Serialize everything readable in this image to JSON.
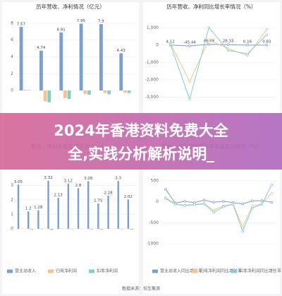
{
  "chart_data": [
    {
      "type": "bar",
      "title": "历年营收、净利情况（亿元）",
      "categories": [
        null,
        null,
        null,
        null,
        null,
        null
      ],
      "series": [
        {
          "color": "#7b9fd4",
          "values": [
            7.57,
            4.74,
            6.91,
            7.95,
            7.9,
            4.43
          ],
          "data_labels": true
        },
        {
          "color": "#f5c48a",
          "values": [
            0.1,
            -1.3,
            -0.9,
            -0.4,
            -0.3,
            -0.25
          ]
        },
        {
          "color": "#7fd0cc",
          "values": [
            0.05,
            -1.4,
            -1.0,
            -0.5,
            -0.45,
            -0.3
          ]
        }
      ],
      "ylim": [
        -1,
        8.5
      ],
      "yticks": [
        0,
        2,
        4,
        6,
        8
      ],
      "grid": true
    },
    {
      "type": "line",
      "title": "历年营收、净利同比增长率情况（%）",
      "categories": [
        null,
        null,
        null,
        null,
        null,
        null
      ],
      "series": [
        {
          "color": "#7b9fd4",
          "values": [
            4.12,
            -45.44,
            46.48,
            28.33,
            0.16,
            0.83
          ],
          "data_labels": true
        },
        {
          "color": "#f5c48a",
          "values": [
            100,
            -2100,
            300,
            -200,
            -600,
            900
          ]
        },
        {
          "color": "#7fd0cc",
          "values": [
            50,
            -3100,
            1000,
            -300,
            -500,
            600
          ]
        }
      ],
      "ylim": [
        -3500,
        1500
      ],
      "yticks": [
        {
          "value": 1000,
          "label": "1,000"
        },
        0,
        {
          "value": -1000,
          "label": "-1,000"
        },
        {
          "value": -2000,
          "label": "-2,000"
        },
        {
          "value": -3000,
          "label": "-3,000"
        }
      ],
      "grid": true
    },
    {
      "type": "bar",
      "title": "营收、净利季度变动情况（亿元）",
      "categories": [
        null,
        null,
        null,
        null,
        null,
        null,
        null,
        null,
        null,
        null,
        null,
        null
      ],
      "series": [
        {
          "name": "营业总收入",
          "color": "#7b9fd4",
          "values": [
            3.05,
            1.2,
            1.28,
            3.32,
            2.13,
            3.12,
            2.8,
            3.28,
            1.75,
            2.28,
            3.3,
            2.02
          ],
          "data_labels": true
        },
        {
          "name": "归母净利润",
          "color": "#f5c48a",
          "values": [
            0.02,
            -0.05,
            -0.03,
            -0.08,
            0.03,
            -0.02,
            0.02,
            -0.04,
            -0.05,
            0.02,
            -0.03,
            -0.06
          ]
        },
        {
          "name": "扣非净利润",
          "color": "#7fd0cc",
          "values": [
            0.01,
            -0.06,
            -0.04,
            -0.09,
            0.02,
            -0.03,
            0.01,
            -0.05,
            -0.06,
            0.01,
            -0.04,
            -0.07
          ]
        }
      ],
      "ylim": [
        -0.3,
        3.6
      ],
      "yticks": [
        0,
        1,
        2,
        3
      ],
      "grid": true
    },
    {
      "type": "line",
      "title": "营收、净利同比增长率季度变动情况（%）",
      "categories": [
        null,
        null,
        null,
        null,
        null,
        null,
        null,
        null,
        null,
        null,
        null,
        null
      ],
      "series": [
        {
          "name": "营业总收入同比增长率",
          "color": "#7b9fd4",
          "values": [
            300,
            -30,
            10,
            -20,
            40,
            -10,
            10,
            -20,
            -50,
            20,
            30,
            -15
          ]
        },
        {
          "name": "归母净利润同比增长率",
          "color": "#f5c48a",
          "values": [
            100,
            -50,
            -80,
            -60,
            -40,
            -200,
            -100,
            -50,
            -600,
            -100,
            -50,
            200
          ]
        },
        {
          "name": "扣非净利润同比增长率",
          "color": "#7fd0cc",
          "values": [
            80,
            -60,
            -90,
            -70,
            -50,
            -250,
            -120,
            -60,
            -700,
            -150,
            -60,
            400
          ]
        }
      ],
      "ylim": [
        -1000,
        600
      ],
      "yticks": [
        500,
        0,
        -500,
        -1000
      ],
      "grid": true
    }
  ],
  "banner": {
    "line1": "2024年香港资料免费大全",
    "line2": "全,实践分析解析说明_"
  },
  "source": "数据来源：恒生聚源"
}
